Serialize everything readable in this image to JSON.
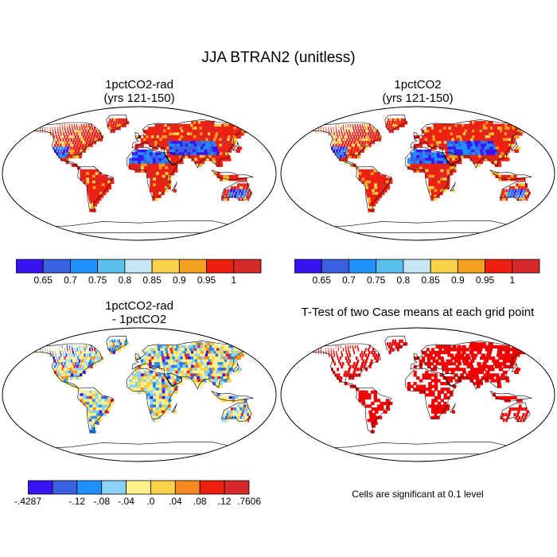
{
  "figure": {
    "title": "JJA BTRAN2 (unitless)"
  },
  "panels": [
    {
      "id": "a",
      "title_line1": "1pctCO2-rad",
      "title_line2": "(yrs 121-150)"
    },
    {
      "id": "b",
      "title_line1": "1pctCO2",
      "title_line2": "(yrs 121-150)"
    },
    {
      "id": "c",
      "title_line1": "1pctCO2-rad",
      "title_line2": "- 1pctCO2"
    },
    {
      "id": "d",
      "title_line1": "T-Test of two Case means at each grid point",
      "title_line2": ""
    }
  ],
  "colorbars": {
    "absolute": {
      "colors": [
        "#3a14f0",
        "#3a62e0",
        "#1e90ff",
        "#5cc0ef",
        "#c6e6f3",
        "#f8d24a",
        "#f5a01e",
        "#f02010",
        "#d42a2a"
      ],
      "tick_labels": [
        "0.65",
        "0.7",
        "0.75",
        "0.8",
        "0.85",
        "0.9",
        "0.95",
        "1"
      ]
    },
    "difference": {
      "colors": [
        "#3a14f0",
        "#3a62e0",
        "#1e90ff",
        "#8ad2f5",
        "#fff08a",
        "#f8d24a",
        "#f58a1e",
        "#f02010",
        "#d42a2a"
      ],
      "tick_labels": [
        "-.4287",
        "-.12",
        "-.08",
        "-.04",
        ".0",
        ".04",
        ".08",
        ".12",
        ".7606"
      ]
    }
  },
  "significance": {
    "note": "Cells are significant at 0.1 level",
    "color": "#f00000"
  }
}
